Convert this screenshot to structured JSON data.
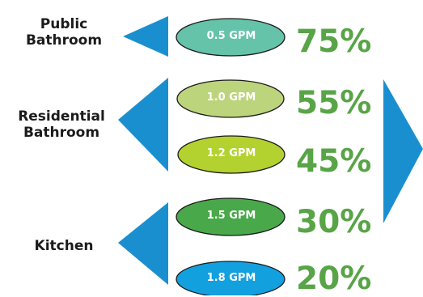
{
  "categories": {
    "public": {
      "line1": "Public",
      "line2": "Bathroom"
    },
    "residential": {
      "line1": "Residential",
      "line2": "Bathroom"
    },
    "kitchen": {
      "label": "Kitchen"
    }
  },
  "flow_rates": [
    {
      "label": "0.5 GPM",
      "percent": "75%",
      "fill": "#64c3a9"
    },
    {
      "label": "1.0 GPM",
      "percent": "55%",
      "fill": "#bcd47c"
    },
    {
      "label": "1.2 GPM",
      "percent": "45%",
      "fill": "#b3d22f"
    },
    {
      "label": "1.5 GPM",
      "percent": "30%",
      "fill": "#49a84a"
    },
    {
      "label": "1.8 GPM",
      "percent": "20%",
      "fill": "#13a0de"
    }
  ],
  "colors": {
    "arrow": "#1a8fd0",
    "percent_text": "#58a447",
    "ellipse_stroke": "#1a1a1a"
  }
}
